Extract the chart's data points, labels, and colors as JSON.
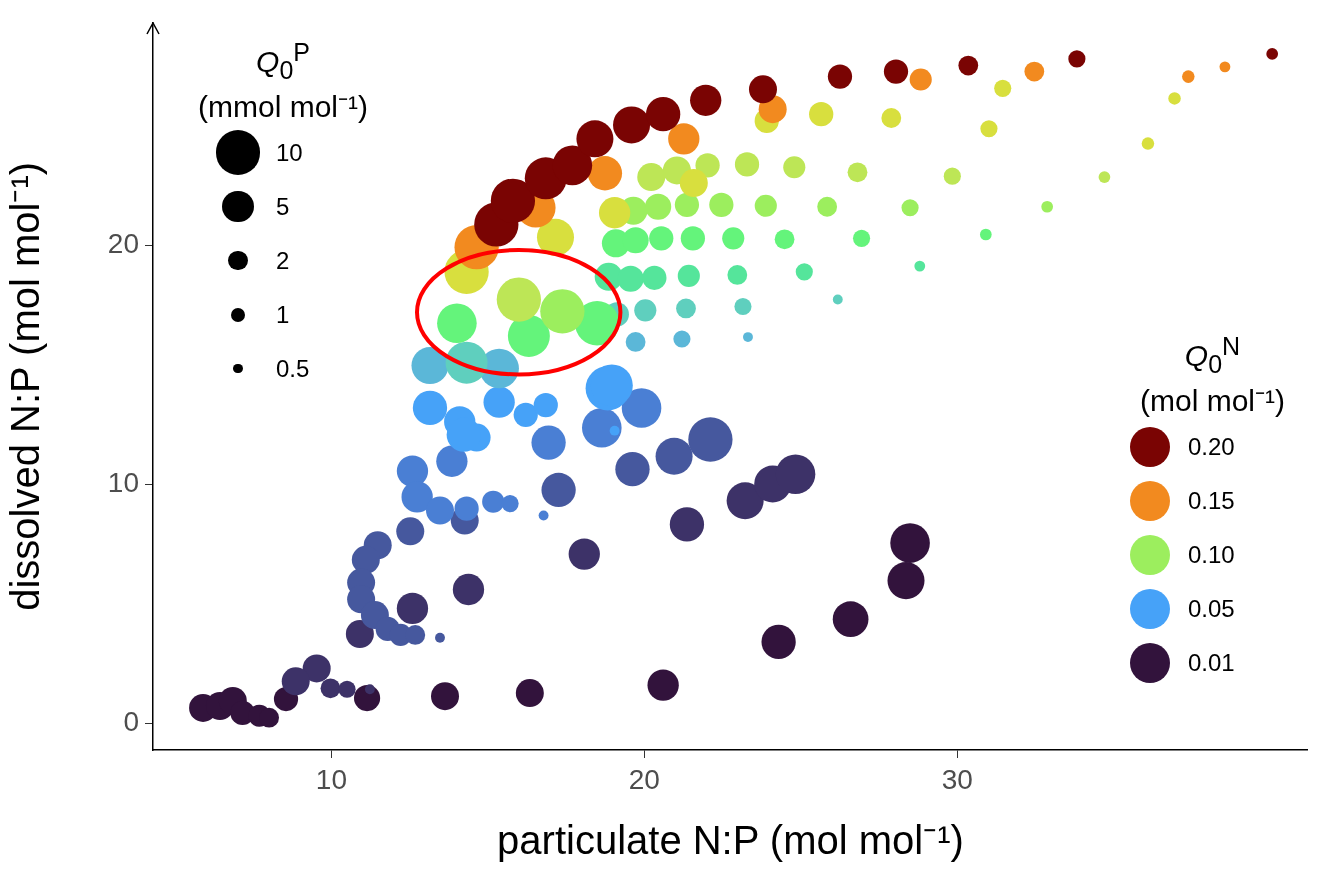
{
  "chart_data": {
    "type": "bubble",
    "xlabel": "particulate N:P (mol mol⁻¹)",
    "ylabel": "dissolved N:P (mol mol⁻¹)",
    "legend_title": "Q$_{0}$$^{N}$ (mol mol⁻¹)",
    "annotations": [
      "Q$_{0}$$^{P}$ (mmol mol⁻¹)"
    ],
    "xlim": [
      4.3,
      41.2
    ],
    "ylim": [
      -1.1,
      29.3
    ],
    "xticks": [
      10,
      20,
      30
    ],
    "yticks": [
      0,
      10,
      20
    ],
    "grid": false,
    "legend": "bottom right",
    "marker": "circle",
    "size_legend": [
      10,
      5,
      2,
      1,
      0.5
    ],
    "series": [
      {
        "color": "#46a2f8",
        "x": [
          19.05
        ],
        "values": [
          12.25
        ],
        "sizes": [
          0.5
        ]
      },
      {
        "name": "0.20",
        "color": "#7a0403",
        "x": [
          15.27,
          15.8,
          16.85,
          17.7,
          18.42,
          19.59,
          20.6,
          21.96,
          23.79,
          26.25,
          28.04,
          30.35,
          33.82,
          40.06
        ],
        "values": [
          20.87,
          21.86,
          22.8,
          23.34,
          24.45,
          25.03,
          25.48,
          26.06,
          26.52,
          27.05,
          27.26,
          27.51,
          27.79,
          28.0
        ],
        "sizes": [
          10,
          10,
          9,
          8,
          7,
          7,
          6,
          5,
          4,
          3,
          3,
          2,
          1.5,
          0.7
        ]
      },
      {
        "name": "0.15",
        "color": "#f28a1f",
        "x": [
          14.64,
          16.53,
          18.74,
          21.26,
          24.1,
          28.83,
          32.46,
          37.38,
          38.55
        ],
        "values": [
          19.92,
          21.57,
          23.01,
          24.45,
          25.69,
          26.93,
          27.26,
          27.05,
          27.46
        ],
        "sizes": [
          10,
          8,
          6,
          5,
          4,
          2.5,
          2,
          0.8,
          0.6
        ]
      },
      {
        "color": "#d8df3e",
        "x": [
          14.32,
          17.16,
          19.05,
          21.58,
          23.91,
          25.65,
          27.89,
          31.01,
          36.09,
          36.94,
          31.45
        ],
        "values": [
          18.89,
          20.33,
          21.36,
          22.6,
          25.2,
          25.48,
          25.32,
          24.87,
          24.25,
          26.14,
          26.56
        ],
        "sizes": [
          10,
          7,
          5,
          4,
          3,
          3,
          2,
          1.5,
          0.8,
          0.8,
          1.5
        ]
      },
      {
        "color": "#bde656",
        "x": [
          15.99,
          20.22,
          21.04,
          22.02,
          23.28,
          24.79,
          26.81,
          29.84,
          34.7
        ],
        "values": [
          17.73,
          22.85,
          23.13,
          23.34,
          23.38,
          23.26,
          23.05,
          22.89,
          22.85
        ],
        "sizes": [
          10,
          4,
          4,
          3,
          3,
          2.5,
          2,
          1.5,
          0.7
        ]
      },
      {
        "name": "0.10",
        "color": "#9cee5e",
        "x": [
          17.38,
          19.65,
          20.44,
          21.36,
          22.46,
          23.88,
          25.84,
          28.49,
          32.87
        ],
        "values": [
          17.24,
          21.44,
          21.61,
          21.69,
          21.69,
          21.65,
          21.61,
          21.57,
          21.61
        ],
        "sizes": [
          10,
          4,
          3.5,
          3,
          3,
          2.5,
          2,
          1.5,
          0.7
        ]
      },
      {
        "color": "#64f47b",
        "x": [
          14.01,
          18.49,
          16.31,
          19.09,
          19.72,
          20.54,
          21.55,
          22.84,
          24.48,
          26.94,
          30.91
        ],
        "values": [
          16.74,
          16.74,
          16.21,
          20.08,
          20.21,
          20.29,
          20.29,
          20.29,
          20.25,
          20.29,
          20.45
        ],
        "sizes": [
          8,
          10,
          9,
          4,
          3.5,
          3,
          3,
          2.5,
          2,
          1.5,
          0.7
        ]
      },
      {
        "color": "#55e59b",
        "x": [
          18.86,
          19.56,
          20.32,
          21.42,
          22.97,
          25.11,
          28.8
        ],
        "values": [
          18.68,
          18.6,
          18.64,
          18.72,
          18.76,
          18.89,
          19.13
        ],
        "sizes": [
          4,
          3.5,
          3,
          2.5,
          2,
          1.5,
          0.6
        ]
      },
      {
        "color": "#5fcfbe",
        "x": [
          14.32,
          19.12,
          20.03,
          21.33,
          23.15,
          26.18
        ],
        "values": [
          15.09,
          17.11,
          17.28,
          17.36,
          17.44,
          17.73
        ],
        "sizes": [
          9,
          3,
          2.5,
          2,
          1.5,
          0.5
        ]
      },
      {
        "color": "#5bb7d8",
        "x": [
          13.15,
          15.36,
          19.72,
          21.2,
          23.31
        ],
        "values": [
          14.97,
          14.85,
          15.96,
          16.08,
          16.16
        ],
        "sizes": [
          7,
          8,
          2,
          1.5,
          0.5
        ]
      },
      {
        "name": "0.05",
        "color": "#46a2f8",
        "x": [
          13.15,
          14.1,
          14.64,
          15.36,
          16.21,
          16.85,
          18.83,
          18.96,
          14.23
        ],
        "values": [
          13.2,
          12.62,
          11.96,
          13.44,
          12.91,
          13.32,
          14.02,
          14.14,
          12.08
        ],
        "sizes": [
          6,
          5,
          4,
          5,
          3,
          3,
          10,
          9,
          6
        ]
      },
      {
        "color": "#4a7fd4",
        "x": [
          16.94,
          13.85,
          12.59,
          12.74,
          13.47,
          14.32,
          15.17,
          15.71,
          16.78,
          18.64,
          19.91
        ],
        "values": [
          11.75,
          10.97,
          10.56,
          9.48,
          8.91,
          8.99,
          9.28,
          9.2,
          8.7,
          12.37,
          13.2
        ],
        "sizes": [
          6,
          5,
          5,
          5,
          4,
          3,
          2.5,
          1.5,
          0.5,
          8,
          8
        ]
      },
      {
        "color": "#46589e",
        "x": [
          11.48,
          11.1,
          10.95,
          10.95,
          11.39,
          11.8,
          12.21,
          12.68,
          13.47,
          12.52,
          17.26,
          14.26,
          19.62,
          20.95,
          22.11
        ],
        "values": [
          7.46,
          6.85,
          5.9,
          5.2,
          4.54,
          3.96,
          3.71,
          3.71,
          3.59,
          8.04,
          9.77,
          8.49,
          10.64,
          11.18,
          11.88
        ],
        "sizes": [
          4,
          4,
          4,
          4,
          4,
          3,
          2.5,
          2,
          0.5,
          4,
          6,
          4,
          6,
          7,
          10
        ]
      },
      {
        "color": "#3d3268",
        "x": [
          10.91,
          12.59,
          14.38,
          18.08,
          9.53,
          8.86,
          9.97,
          10.5,
          11.23,
          21.36,
          23.22,
          24.1,
          24.83
        ],
        "values": [
          3.75,
          4.82,
          5.61,
          7.09,
          2.31,
          1.77,
          1.48,
          1.44,
          1.44,
          8.33,
          9.32,
          10.02,
          10.43
        ],
        "sizes": [
          4,
          5,
          5,
          5,
          4,
          4,
          2,
          1.5,
          0.5,
          6,
          7,
          7,
          8
        ]
      },
      {
        "name": "0.01",
        "color": "#32133c",
        "x": [
          5.9,
          6.44,
          6.85,
          7.16,
          7.7,
          8.01,
          8.55,
          11.14,
          13.63,
          16.34,
          20.6,
          24.29,
          26.59,
          28.36,
          28.49
        ],
        "values": [
          0.66,
          0.74,
          0.95,
          0.45,
          0.33,
          0.25,
          1.03,
          1.07,
          1.15,
          1.28,
          1.61,
          3.42,
          4.37,
          5.98,
          7.55
        ],
        "sizes": [
          4,
          4,
          4,
          3,
          2.5,
          2,
          3,
          3.5,
          4,
          4,
          5,
          6,
          6.5,
          7,
          8
        ]
      }
    ]
  }
}
